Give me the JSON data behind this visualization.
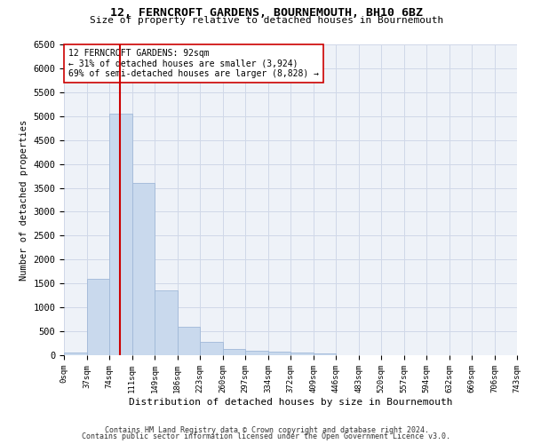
{
  "title1": "12, FERNCROFT GARDENS, BOURNEMOUTH, BH10 6BZ",
  "title2": "Size of property relative to detached houses in Bournemouth",
  "xlabel": "Distribution of detached houses by size in Bournemouth",
  "ylabel": "Number of detached properties",
  "footnote1": "Contains HM Land Registry data © Crown copyright and database right 2024.",
  "footnote2": "Contains public sector information licensed under the Open Government Licence v3.0.",
  "annotation_line1": "12 FERNCROFT GARDENS: 92sqm",
  "annotation_line2": "← 31% of detached houses are smaller (3,924)",
  "annotation_line3": "69% of semi-detached houses are larger (8,828) →",
  "bar_color": "#c9d9ed",
  "bar_edge_color": "#a0b8d8",
  "vline_color": "#cc0000",
  "grid_color": "#d0d8e8",
  "background_color": "#eef2f8",
  "bin_labels": [
    "0sqm",
    "37sqm",
    "74sqm",
    "111sqm",
    "149sqm",
    "186sqm",
    "223sqm",
    "260sqm",
    "297sqm",
    "334sqm",
    "372sqm",
    "409sqm",
    "446sqm",
    "483sqm",
    "520sqm",
    "557sqm",
    "594sqm",
    "632sqm",
    "669sqm",
    "706sqm",
    "743sqm"
  ],
  "bar_values": [
    50,
    1600,
    5050,
    3600,
    1350,
    600,
    275,
    125,
    100,
    75,
    50,
    30,
    0,
    0,
    0,
    0,
    0,
    0,
    0,
    0
  ],
  "n_bins": 20,
  "bin_width": 37,
  "property_size": 92,
  "ylim": [
    0,
    6500
  ],
  "yticks": [
    0,
    500,
    1000,
    1500,
    2000,
    2500,
    3000,
    3500,
    4000,
    4500,
    5000,
    5500,
    6000,
    6500
  ]
}
